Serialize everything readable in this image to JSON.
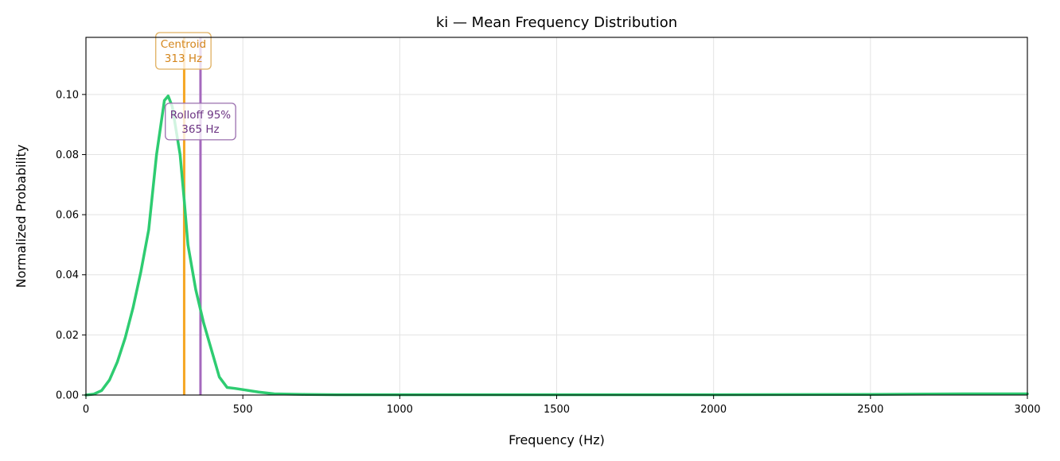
{
  "chart_data": {
    "type": "line",
    "title": "ki  —  Mean Frequency Distribution",
    "xlabel": "Frequency (Hz)",
    "ylabel": "Normalized Probability",
    "xlim": [
      0,
      3000
    ],
    "ylim": [
      0,
      0.119
    ],
    "x_ticks": [
      0,
      500,
      1000,
      1500,
      2000,
      2500,
      3000
    ],
    "x_tick_labels": [
      "0",
      "500",
      "1000",
      "1500",
      "2000",
      "2500",
      "3000"
    ],
    "y_ticks": [
      0,
      0.02,
      0.04,
      0.06,
      0.08,
      0.1
    ],
    "y_tick_labels": [
      "0.00",
      "0.02",
      "0.04",
      "0.06",
      "0.08",
      "0.10"
    ],
    "grid": true,
    "series": [
      {
        "color": "#2ecc71",
        "x": [
          0,
          25,
          50,
          75,
          100,
          125,
          150,
          175,
          200,
          225,
          250,
          262,
          275,
          300,
          313,
          325,
          350,
          375,
          400,
          425,
          450,
          475,
          500,
          550,
          600,
          700,
          800,
          1000,
          1500,
          2000,
          2500,
          2800,
          3000
        ],
        "y": [
          0.0,
          0.0003,
          0.0015,
          0.005,
          0.011,
          0.019,
          0.029,
          0.041,
          0.055,
          0.08,
          0.098,
          0.0995,
          0.096,
          0.08,
          0.065,
          0.05,
          0.035,
          0.024,
          0.015,
          0.006,
          0.0025,
          0.0022,
          0.0018,
          0.001,
          0.0004,
          0.0002,
          0.0001,
          0.0001,
          0.0001,
          0.0001,
          0.0002,
          0.0004,
          0.0004
        ]
      }
    ],
    "annotations": [
      {
        "name": "centroid",
        "x": 313,
        "line1": "Centroid",
        "line2": "313 Hz",
        "color": "#f5a623",
        "text_color": "#d4861c",
        "box_edge": "#e0b060",
        "label_y": 0.1145
      },
      {
        "name": "rolloff",
        "x": 365,
        "line1": "Rolloff 95%",
        "line2": "365 Hz",
        "color": "#a569bd",
        "text_color": "#6c3483",
        "box_edge": "#9a6fae",
        "label_y": 0.091
      }
    ]
  }
}
